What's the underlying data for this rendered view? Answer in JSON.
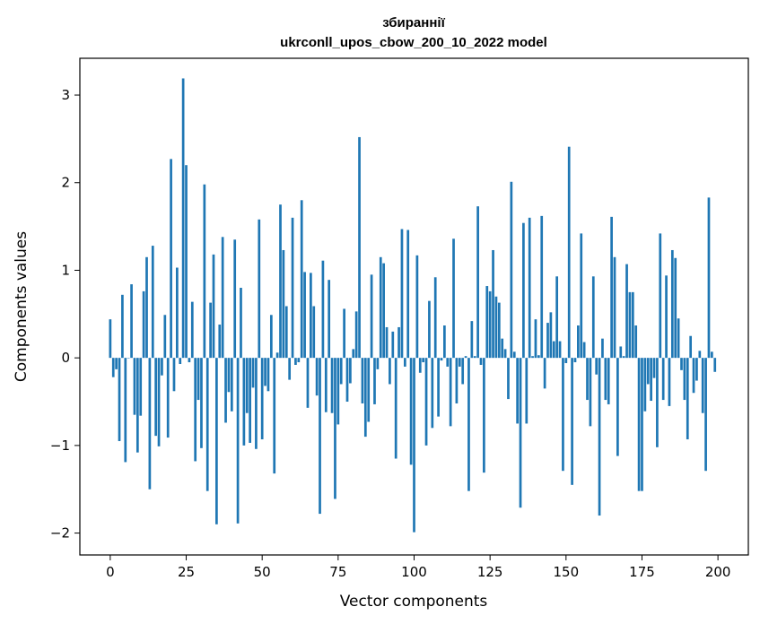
{
  "chart_data": {
    "type": "bar",
    "title": "збираннії",
    "subtitle": "ukrconll_upos_cbow_200_10_2022 model",
    "xlabel": "Vector components",
    "ylabel": "Components values",
    "xlim": [
      -10,
      210
    ],
    "ylim": [
      -2.25,
      3.42
    ],
    "xticks": [
      0,
      25,
      50,
      75,
      100,
      125,
      150,
      175,
      200
    ],
    "yticks": [
      -2,
      -1,
      0,
      1,
      2,
      3
    ],
    "ytick_labels": [
      "−2",
      "−1",
      "0",
      "1",
      "2",
      "3"
    ],
    "grid": false,
    "legend": "none",
    "bar_color": "#1f77b4",
    "values": [
      0.44,
      -0.22,
      -0.13,
      -0.95,
      0.72,
      -1.19,
      0.0,
      0.84,
      -0.65,
      -1.08,
      -0.66,
      0.76,
      1.15,
      -1.5,
      1.28,
      -0.89,
      -1.01,
      -0.2,
      0.49,
      -0.91,
      2.27,
      -0.38,
      1.03,
      -0.07,
      3.19,
      2.2,
      -0.05,
      0.64,
      -1.18,
      -0.48,
      -1.03,
      1.98,
      -1.52,
      0.63,
      1.18,
      -1.9,
      0.38,
      1.38,
      -0.74,
      -0.39,
      -0.61,
      1.35,
      -1.89,
      0.8,
      -1.0,
      -0.63,
      -0.97,
      -0.34,
      -1.04,
      1.58,
      -0.93,
      -0.32,
      -0.38,
      0.49,
      -1.32,
      0.06,
      1.75,
      1.23,
      0.59,
      -0.25,
      1.6,
      -0.08,
      -0.05,
      1.8,
      0.98,
      -0.57,
      0.97,
      0.59,
      -0.43,
      -1.78,
      1.11,
      -0.62,
      0.89,
      -0.63,
      -1.61,
      -0.76,
      -0.3,
      0.56,
      -0.5,
      -0.29,
      0.1,
      0.53,
      2.52,
      -0.52,
      -0.9,
      -0.73,
      0.95,
      -0.53,
      -0.13,
      1.15,
      1.08,
      0.35,
      -0.3,
      0.3,
      -1.15,
      0.35,
      1.47,
      -0.1,
      1.46,
      -1.22,
      -1.99,
      1.17,
      -0.17,
      -0.05,
      -1.0,
      0.65,
      -0.8,
      0.92,
      -0.67,
      -0.03,
      0.37,
      -0.1,
      -0.78,
      1.36,
      -0.52,
      -0.1,
      -0.3,
      0.02,
      -1.52,
      0.42,
      0.02,
      1.73,
      -0.08,
      -1.31,
      0.82,
      0.76,
      1.23,
      0.7,
      0.63,
      0.22,
      0.1,
      -0.47,
      2.01,
      0.07,
      -0.75,
      -1.71,
      1.54,
      -0.75,
      1.6,
      0.02,
      0.44,
      0.03,
      1.62,
      -0.35,
      0.4,
      0.52,
      0.19,
      0.93,
      0.19,
      -1.29,
      -0.06,
      2.41,
      -1.45,
      -0.05,
      0.37,
      1.42,
      0.18,
      -0.48,
      -0.78,
      0.93,
      -0.19,
      -1.8,
      0.22,
      -0.48,
      -0.53,
      1.61,
      1.15,
      -1.12,
      0.13,
      0.02,
      1.07,
      0.75,
      0.75,
      0.37,
      -1.52,
      -1.52,
      -0.61,
      -0.3,
      -0.49,
      -0.23,
      -1.02,
      1.42,
      -0.48,
      0.94,
      -0.55,
      1.23,
      1.14,
      0.45,
      -0.14,
      -0.48,
      -0.93,
      0.25,
      -0.4,
      -0.26,
      0.08,
      -0.63,
      -1.29,
      1.83,
      0.07,
      -0.16
    ]
  }
}
